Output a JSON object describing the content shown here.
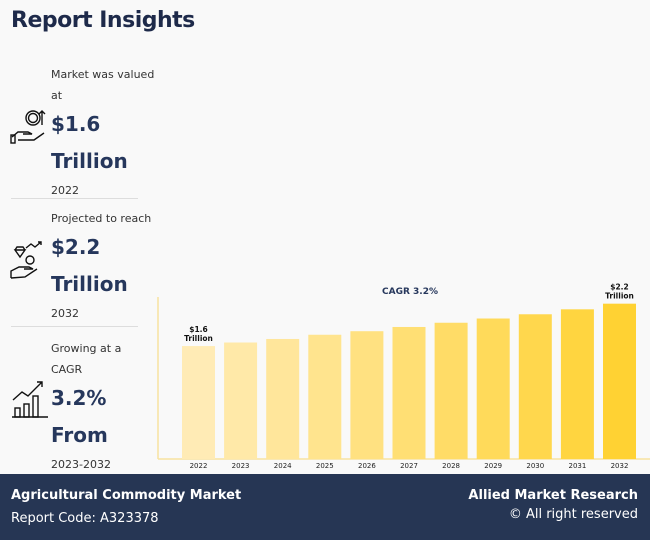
{
  "title": "Report Insights",
  "stats": [
    {
      "label": "Market was valued at",
      "value": "$1.6",
      "unit": "Trillion",
      "year": "2022",
      "icon": "money-hand-icon"
    },
    {
      "label": "Projected to reach",
      "value": "$2.2",
      "unit": "Trillion",
      "year": "2032",
      "icon": "diamond-hand-icon"
    },
    {
      "label": "Growing at a CAGR",
      "value": "3.2%",
      "unit": "From",
      "year": "2023-2032",
      "icon": "growth-chart-icon"
    }
  ],
  "chart_data": {
    "type": "bar",
    "title": "CAGR 3.2%",
    "categories": [
      "2022",
      "2023",
      "2024",
      "2025",
      "2026",
      "2027",
      "2028",
      "2029",
      "2030",
      "2031",
      "2032"
    ],
    "values": [
      1.6,
      1.65,
      1.7,
      1.76,
      1.81,
      1.87,
      1.93,
      1.99,
      2.05,
      2.12,
      2.2
    ],
    "data_labels": [
      {
        "index": 0,
        "line1": "$1.6",
        "line2": "Trillion"
      },
      {
        "index": 10,
        "line1": "$2.2",
        "line2": "Trillion"
      }
    ],
    "colors": [
      "#FFEBB5",
      "#FFD233"
    ],
    "axis_color": "#F7E3A0"
  },
  "footer": {
    "market": "Agricultural Commodity Market",
    "code": "Report Code: A323378",
    "brand": "Allied Market Research",
    "rights": "© All right reserved"
  }
}
